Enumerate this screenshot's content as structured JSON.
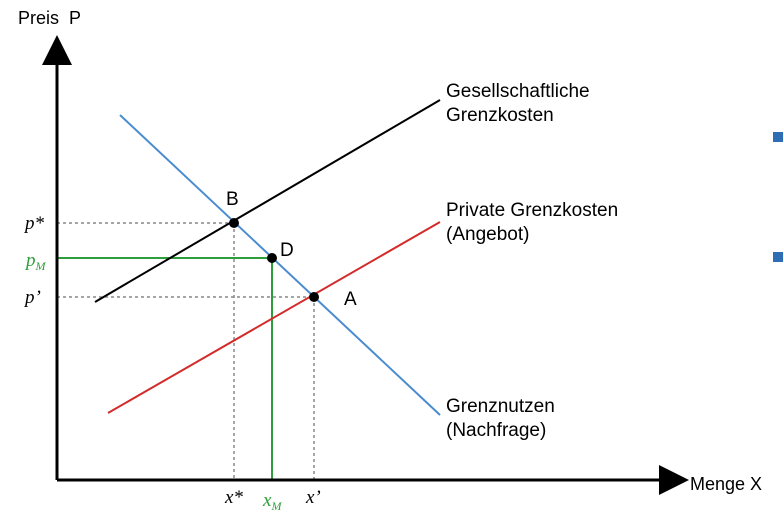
{
  "colors": {
    "axis": "#000000",
    "social_cost": "#000000",
    "private_cost": "#d42a2a",
    "demand": "#4a8ccf",
    "market": "#2e9e3a",
    "guide": "#888888",
    "bullet": "#2f6db5"
  },
  "axes": {
    "y_label": "Preis  P",
    "x_label": "Menge X"
  },
  "curves": {
    "social": {
      "line1": "Gesellschaftliche",
      "line2": "Grenzkosten"
    },
    "private": {
      "line1": "Private Grenzkosten",
      "line2": "(Angebot)"
    },
    "demand": {
      "line1": "Grenznutzen",
      "line2": "(Nachfrage)"
    }
  },
  "points": {
    "B": "B",
    "D": "D",
    "A": "A"
  },
  "ticks": {
    "p_star": "p*",
    "p_m_base": "p",
    "p_m_sub": "M",
    "p_prime": "p’",
    "x_star": "x*",
    "x_m_base": "x",
    "x_m_sub": "M",
    "x_prime": "x’"
  }
}
